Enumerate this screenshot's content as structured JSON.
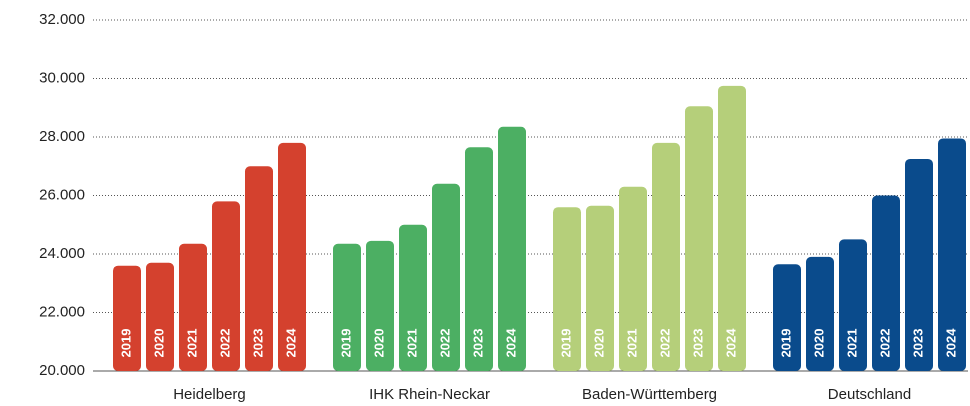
{
  "chart_data": {
    "type": "bar",
    "categories": [
      "Heidelberg",
      "IHK Rhein-Neckar",
      "Baden-Württemberg",
      "Deutschland"
    ],
    "colors": [
      "#d4412e",
      "#4caf63",
      "#b5cf7a",
      "#0a4b8c"
    ],
    "series": [
      {
        "name": "2019",
        "values": [
          23600,
          24350,
          25600,
          23650
        ]
      },
      {
        "name": "2020",
        "values": [
          23700,
          24450,
          25650,
          23900
        ]
      },
      {
        "name": "2021",
        "values": [
          24350,
          25000,
          26300,
          24500
        ]
      },
      {
        "name": "2022",
        "values": [
          25800,
          26400,
          27800,
          26000
        ]
      },
      {
        "name": "2023",
        "values": [
          27000,
          27650,
          29050,
          27250
        ]
      },
      {
        "name": "2024",
        "values": [
          27800,
          28350,
          29750,
          27950
        ]
      }
    ],
    "ylim": [
      20000,
      32000
    ],
    "yticks": [
      {
        "value": 20000,
        "label": "20.000"
      },
      {
        "value": 22000,
        "label": "22.000"
      },
      {
        "value": 24000,
        "label": "24.000"
      },
      {
        "value": 26000,
        "label": "26.000"
      },
      {
        "value": 28000,
        "label": "28.000"
      },
      {
        "value": 30000,
        "label": "30.000"
      },
      {
        "value": 32000,
        "label": "32.000"
      }
    ],
    "grid": true
  }
}
